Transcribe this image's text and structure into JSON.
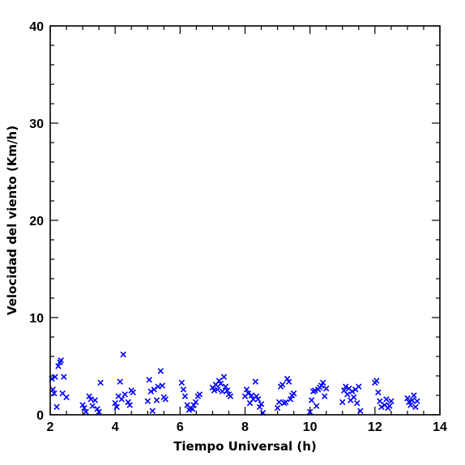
{
  "chart_data": {
    "type": "scatter",
    "xlabel": "Tiempo Universal (h)",
    "ylabel": "Velocidad del viento (Km/h)",
    "xlim": [
      2,
      14
    ],
    "ylim": [
      0,
      40
    ],
    "x_ticks": [
      2,
      4,
      6,
      8,
      10,
      12,
      14
    ],
    "y_ticks": [
      0,
      10,
      20,
      30,
      40
    ],
    "x_minor_step": 0.5,
    "y_minor_step": 2,
    "grid": false,
    "marker": "x",
    "color": "#0000ff",
    "series": [
      {
        "points": [
          [
            2.05,
            3.7
          ],
          [
            2.08,
            2.6
          ],
          [
            2.12,
            2.2
          ],
          [
            2.15,
            3.9
          ],
          [
            2.2,
            0.8
          ],
          [
            2.25,
            5.0
          ],
          [
            2.3,
            5.4
          ],
          [
            2.33,
            5.6
          ],
          [
            2.38,
            2.2
          ],
          [
            2.42,
            3.9
          ],
          [
            2.5,
            1.8
          ],
          [
            3.0,
            1.0
          ],
          [
            3.05,
            0.7
          ],
          [
            3.1,
            0.3
          ],
          [
            3.2,
            1.9
          ],
          [
            3.25,
            1.6
          ],
          [
            3.3,
            0.9
          ],
          [
            3.38,
            1.5
          ],
          [
            3.45,
            0.6
          ],
          [
            3.5,
            0.3
          ],
          [
            3.55,
            3.3
          ],
          [
            4.0,
            1.2
          ],
          [
            4.05,
            0.8
          ],
          [
            4.1,
            1.9
          ],
          [
            4.15,
            3.4
          ],
          [
            4.2,
            1.6
          ],
          [
            4.25,
            6.2
          ],
          [
            4.3,
            2.1
          ],
          [
            4.4,
            1.3
          ],
          [
            4.45,
            1.0
          ],
          [
            4.5,
            2.5
          ],
          [
            4.55,
            2.3
          ],
          [
            5.0,
            1.4
          ],
          [
            5.05,
            3.6
          ],
          [
            5.1,
            2.4
          ],
          [
            5.15,
            0.4
          ],
          [
            5.2,
            2.6
          ],
          [
            5.28,
            1.5
          ],
          [
            5.32,
            2.9
          ],
          [
            5.4,
            4.5
          ],
          [
            5.45,
            3.0
          ],
          [
            5.5,
            1.8
          ],
          [
            5.55,
            1.6
          ],
          [
            6.05,
            3.3
          ],
          [
            6.1,
            2.6
          ],
          [
            6.15,
            1.9
          ],
          [
            6.22,
            1.0
          ],
          [
            6.28,
            0.5
          ],
          [
            6.32,
            0.7
          ],
          [
            6.38,
            0.6
          ],
          [
            6.42,
            1.0
          ],
          [
            6.48,
            1.3
          ],
          [
            6.55,
            1.9
          ],
          [
            6.6,
            2.1
          ],
          [
            7.0,
            2.8
          ],
          [
            7.05,
            2.5
          ],
          [
            7.1,
            3.1
          ],
          [
            7.15,
            2.6
          ],
          [
            7.2,
            3.5
          ],
          [
            7.25,
            3.2
          ],
          [
            7.3,
            2.4
          ],
          [
            7.35,
            3.9
          ],
          [
            7.4,
            2.9
          ],
          [
            7.45,
            2.5
          ],
          [
            7.5,
            2.1
          ],
          [
            7.55,
            1.9
          ],
          [
            8.0,
            1.9
          ],
          [
            8.05,
            2.6
          ],
          [
            8.1,
            2.2
          ],
          [
            8.15,
            1.2
          ],
          [
            8.2,
            2.0
          ],
          [
            8.25,
            1.6
          ],
          [
            8.32,
            3.4
          ],
          [
            8.35,
            1.9
          ],
          [
            8.4,
            1.6
          ],
          [
            8.45,
            0.8
          ],
          [
            8.5,
            1.1
          ],
          [
            8.55,
            0.2
          ],
          [
            9.0,
            0.7
          ],
          [
            9.05,
            1.3
          ],
          [
            9.1,
            2.9
          ],
          [
            9.15,
            3.1
          ],
          [
            9.2,
            1.2
          ],
          [
            9.25,
            1.3
          ],
          [
            9.3,
            3.7
          ],
          [
            9.35,
            3.4
          ],
          [
            9.4,
            1.6
          ],
          [
            9.45,
            2.0
          ],
          [
            9.5,
            2.2
          ],
          [
            10.0,
            0.3
          ],
          [
            10.05,
            1.5
          ],
          [
            10.1,
            2.4
          ],
          [
            10.15,
            2.5
          ],
          [
            10.2,
            0.9
          ],
          [
            10.25,
            2.6
          ],
          [
            10.3,
            2.8
          ],
          [
            10.35,
            3.0
          ],
          [
            10.4,
            3.3
          ],
          [
            10.45,
            1.9
          ],
          [
            10.5,
            2.7
          ],
          [
            11.0,
            1.3
          ],
          [
            11.05,
            2.5
          ],
          [
            11.1,
            2.9
          ],
          [
            11.15,
            2.1
          ],
          [
            11.2,
            2.7
          ],
          [
            11.25,
            1.5
          ],
          [
            11.3,
            2.4
          ],
          [
            11.35,
            1.8
          ],
          [
            11.4,
            2.6
          ],
          [
            11.45,
            1.2
          ],
          [
            11.5,
            2.9
          ],
          [
            11.55,
            0.4
          ],
          [
            12.0,
            3.3
          ],
          [
            12.05,
            3.5
          ],
          [
            12.1,
            2.3
          ],
          [
            12.15,
            1.4
          ],
          [
            12.2,
            0.8
          ],
          [
            12.3,
            1.0
          ],
          [
            12.35,
            1.6
          ],
          [
            12.4,
            0.7
          ],
          [
            12.45,
            0.9
          ],
          [
            12.5,
            1.4
          ],
          [
            13.0,
            1.7
          ],
          [
            13.05,
            1.3
          ],
          [
            13.1,
            1.0
          ],
          [
            13.15,
            1.5
          ],
          [
            13.2,
            2.0
          ],
          [
            13.25,
            0.8
          ],
          [
            13.3,
            1.4
          ]
        ]
      }
    ]
  }
}
